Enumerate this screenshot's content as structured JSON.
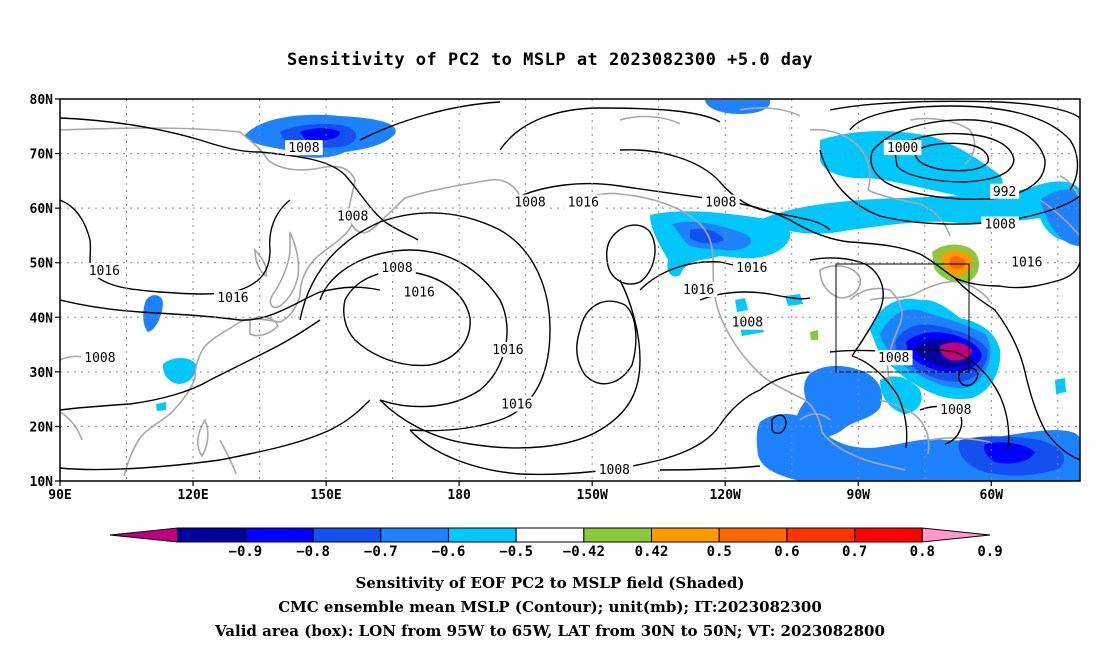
{
  "title": "Sensitivity of PC2 to MSLP at 2023082300 +5.0 day",
  "map": {
    "lat_labels": [
      "80N",
      "70N",
      "60N",
      "50N",
      "40N",
      "30N",
      "20N",
      "10N"
    ],
    "lon_labels": [
      "90E",
      "120E",
      "150E",
      "180",
      "150W",
      "120W",
      "90W",
      "60W"
    ],
    "contour_labels": [
      {
        "text": "1008",
        "lon": 145,
        "lat": 71
      },
      {
        "text": "1008",
        "lon": 156,
        "lat": 58.5
      },
      {
        "text": "1016",
        "lon": 100,
        "lat": 48.5
      },
      {
        "text": "1016",
        "lon": 129,
        "lat": 43.5
      },
      {
        "text": "1008",
        "lon": 166,
        "lat": 49
      },
      {
        "text": "1016",
        "lon": 171,
        "lat": 44.5
      },
      {
        "text": "1008",
        "lon": 196,
        "lat": 61
      },
      {
        "text": "1016",
        "lon": 208,
        "lat": 61
      },
      {
        "text": "1008",
        "lon": 99,
        "lat": 32.5
      },
      {
        "text": "1016",
        "lon": 191,
        "lat": 34
      },
      {
        "text": "1016",
        "lon": 193,
        "lat": 24
      },
      {
        "text": "1008",
        "lon": 215,
        "lat": 12
      },
      {
        "text": "1008",
        "lon": 239,
        "lat": 61
      },
      {
        "text": "1016",
        "lon": 246,
        "lat": 49
      },
      {
        "text": "1016",
        "lon": 234,
        "lat": 45
      },
      {
        "text": "1008",
        "lon": 245,
        "lat": 39
      },
      {
        "text": "1000",
        "lon": 280,
        "lat": 71
      },
      {
        "text": "992",
        "lon": 303,
        "lat": 63
      },
      {
        "text": "1008",
        "lon": 302,
        "lat": 57
      },
      {
        "text": "1016",
        "lon": 308,
        "lat": 50
      },
      {
        "text": "1008",
        "lon": 278,
        "lat": 32.5
      },
      {
        "text": "1008",
        "lon": 292,
        "lat": 23
      }
    ]
  },
  "colorbar": {
    "colors": [
      "#c00080",
      "#0000a0",
      "#0000ff",
      "#1450f0",
      "#1e82ff",
      "#00c8ff",
      "#ffffff",
      "#8cc83c",
      "#ff9900",
      "#ff6600",
      "#ff3300",
      "#ff0000",
      "#ff99cc"
    ],
    "labels": [
      "−0.9",
      "−0.8",
      "−0.7",
      "−0.6",
      "−0.5",
      "−0.42",
      "0.42",
      "0.5",
      "0.6",
      "0.7",
      "0.8",
      "0.9"
    ]
  },
  "captions": [
    "Sensitivity of EOF PC2 to MSLP field (Shaded)",
    "CMC ensemble mean MSLP (Contour); unit(mb); IT:2023082300",
    "Valid area (box): LON from 95W to 65W, LAT from 30N to 50N; VT: 2023082800"
  ]
}
